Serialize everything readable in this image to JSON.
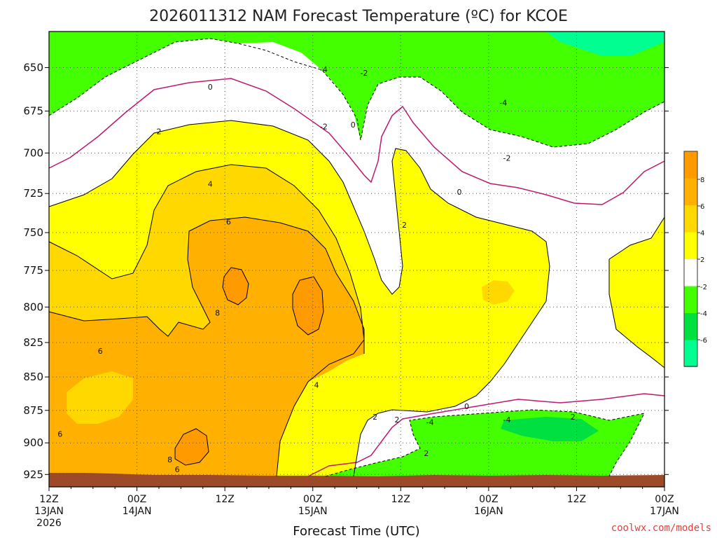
{
  "chart_data": {
    "type": "heatmap",
    "title": "2026011312 NAM Forecast Temperature (ºC) for KCOE",
    "xlabel": "Forecast Time (UTC)",
    "credit": "coolwx.com/models",
    "x_ticks": [
      {
        "line1": "12Z",
        "line2": "13JAN",
        "line3": "2026",
        "hour": 0
      },
      {
        "line1": "00Z",
        "line2": "14JAN",
        "line3": "",
        "hour": 12
      },
      {
        "line1": "12Z",
        "line2": "",
        "line3": "",
        "hour": 24
      },
      {
        "line1": "00Z",
        "line2": "15JAN",
        "line3": "",
        "hour": 36
      },
      {
        "line1": "12Z",
        "line2": "",
        "line3": "",
        "hour": 48
      },
      {
        "line1": "00Z",
        "line2": "16JAN",
        "line3": "",
        "hour": 60
      },
      {
        "line1": "12Z",
        "line2": "",
        "line3": "",
        "hour": 72
      },
      {
        "line1": "00Z",
        "line2": "17JAN",
        "line3": "",
        "hour": 84
      }
    ],
    "xlim_hours": [
      0,
      84
    ],
    "y_ticks": [
      650,
      675,
      700,
      725,
      750,
      775,
      800,
      825,
      850,
      875,
      900,
      925
    ],
    "ylim_hPa": [
      630,
      935
    ],
    "y_scale": "log",
    "grid": true,
    "colorbar": {
      "levels": [
        -8,
        -6,
        -4,
        -2,
        0,
        2,
        4,
        6,
        8,
        10
      ],
      "tick_labels": [
        "8",
        "6",
        "4",
        "2",
        "-2",
        "-4",
        "-6"
      ],
      "colors": {
        "lt_m6": "#00ff90",
        "m6_m4": "#00e040",
        "m4_m2": "#44ff00",
        "m2_0": "#ffffff",
        "0_2": "#ffffff",
        "2_4": "#ffff00",
        "4_6": "#ffd800",
        "6_8": "#ffb000",
        "8_10": "#ff9a00"
      }
    },
    "ground_color": "#9e4a28",
    "contour_labels": [
      {
        "text": "-4",
        "hour": 37.5,
        "p": 651
      },
      {
        "text": "-2",
        "hour": 43.0,
        "p": 653
      },
      {
        "text": "0",
        "hour": 22.0,
        "p": 661
      },
      {
        "text": "-4",
        "hour": 62.0,
        "p": 670
      },
      {
        "text": "2",
        "hour": 15.0,
        "p": 687
      },
      {
        "text": "-2",
        "hour": 37.5,
        "p": 684
      },
      {
        "text": "0",
        "hour": 41.5,
        "p": 683
      },
      {
        "text": "-2",
        "hour": 62.5,
        "p": 703
      },
      {
        "text": "4",
        "hour": 22.0,
        "p": 719
      },
      {
        "text": "0",
        "hour": 56.0,
        "p": 724
      },
      {
        "text": "6",
        "hour": 24.5,
        "p": 743
      },
      {
        "text": "2",
        "hour": 48.5,
        "p": 745
      },
      {
        "text": "8",
        "hour": 23.0,
        "p": 804
      },
      {
        "text": "6",
        "hour": 7.0,
        "p": 831
      },
      {
        "text": "4",
        "hour": 36.5,
        "p": 856
      },
      {
        "text": "6",
        "hour": 1.5,
        "p": 893
      },
      {
        "text": "0",
        "hour": 57.0,
        "p": 872
      },
      {
        "text": "2",
        "hour": 44.5,
        "p": 880
      },
      {
        "text": "2",
        "hour": 47.5,
        "p": 882
      },
      {
        "text": "-4",
        "hour": 52.0,
        "p": 884
      },
      {
        "text": "-4",
        "hour": 62.5,
        "p": 882
      },
      {
        "text": "2",
        "hour": 71.5,
        "p": 880
      },
      {
        "text": "2",
        "hour": 51.5,
        "p": 908
      },
      {
        "text": "8",
        "hour": 16.5,
        "p": 913
      },
      {
        "text": "6",
        "hour": 17.5,
        "p": 921
      }
    ]
  }
}
